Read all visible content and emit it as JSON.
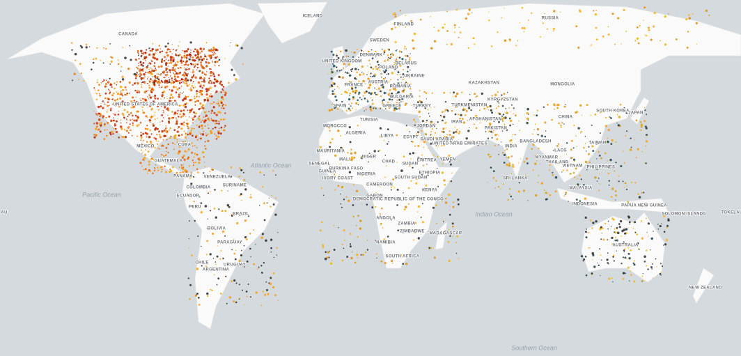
{
  "labels": {
    "countries": [
      "ICELAND",
      "CANADA",
      "RUSSIA",
      "FINLAND",
      "SWEDEN",
      "DENMARK",
      "UNITED KINGDOM",
      "POLAND",
      "BELARUS",
      "UKRAINE",
      "FRANCE",
      "AUSTRIA",
      "ROMANIA",
      "BULGARIA",
      "SPAIN",
      "GREECE",
      "TURKEY",
      "KAZAKHSTAN",
      "KYRGYZSTAN",
      "TURKMENISTAN",
      "MONGOLIA",
      "CHINA",
      "SOUTH KOREA",
      "JAPAN",
      "UNITED STATES OF AMERICA",
      "MEXICO",
      "CUBA",
      "GUATEMALA",
      "PANAMA",
      "VENEZUELA",
      "COLOMBIA",
      "SURINAME",
      "ECUADOR",
      "PERU",
      "BRAZIL",
      "BOLIVIA",
      "PARAGUAY",
      "CHILE",
      "URUGUAY",
      "ARGENTINA",
      "TUNISIA",
      "MOROCCO",
      "ALGERIA",
      "LIBYA",
      "EGYPT",
      "JORDAN",
      "IRAN",
      "SAUDI ARABIA",
      "UNITED ARAB EMIRATES",
      "AFGHANISTAN",
      "PAKISTAN",
      "INDIA",
      "BANGLADESH",
      "MYANMAR",
      "LAOS",
      "THAILAND",
      "VIETNAM",
      "TAIWAN",
      "PHILIPPINES",
      "SRI LANKA",
      "MALAYSIA",
      "INDONESIA",
      "PAPUA NEW GUINEA",
      "SOLOMON ISLANDS",
      "TOKELAU",
      "AU",
      "AUSTRALIA",
      "NEW ZEALAND",
      "MAURITANIA",
      "MALI",
      "NIGER",
      "CHAD",
      "SUDAN",
      "ERITREA",
      "YEMEN",
      "ETHIOPIA",
      "SENEGAL",
      "GUINEA",
      "BURKINA FASO",
      "IVORY COAST",
      "NIGERIA",
      "CAMEROON",
      "SOUTH SUDAN",
      "KENYA",
      "GABON",
      "DEMOCRATIC REPUBLIC OF THE CONGO",
      "ANGOLA",
      "ZAMBIA",
      "ZIMBABWE",
      "MADAGASCAR",
      "NAMIBIA",
      "SOUTH AFRICA"
    ],
    "oceans": [
      "Atlantic Ocean",
      "Pacific Ocean",
      "Indian Ocean",
      "Southern Ocean"
    ]
  }
}
